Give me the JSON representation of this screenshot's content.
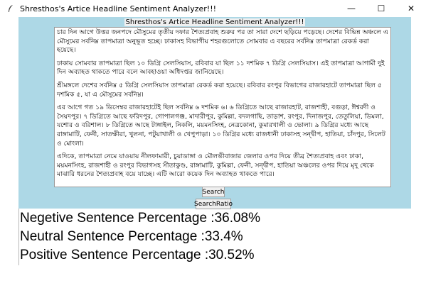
{
  "window": {
    "title": "Shresthos's Artice Headline Sentiment Analyzer!!!",
    "icon": "feather-icon",
    "minimize_glyph": "—",
    "maximize_glyph": "☐",
    "close_glyph": "✕"
  },
  "app": {
    "heading": "Shresthos's Artice Headline Sentiment Analyzer!!!",
    "background": "#add8e6",
    "article_paragraphs": [
      "চার দিন আগে উত্তর জনপদে মৌসুমের তৃতীয় দফার শৈত্যপ্রবাহ শুরুর পর তা সারা দেশে ছড়িয়ে পড়েছে। দেশের বিভিন্ন অঞ্চলে এ মৌসুমের সর্বনিম্ন তাপমাত্রা অনুভূত হচ্ছে। ঢাকাসহ বিভাগীয় শহরগুলোতে সোমবার এ বছরের সর্বনিম্ন তাপমাত্রা রেকর্ড করা হয়েছে।",
      "ঢাকায় সোমবার তাপমাত্রা ছিল ১০ ডিগ্রি সেলসিয়াস, রবিবার যা ছিল ১১ দশমিক ৭ ডিগ্রি সেলসিয়াস। এই তাপমাত্রা আগামী দুই দিন অব্যাহত থাকতে পারে বলে আবহাওয়া অধিদপ্তর জানিয়েছে।",
      "শ্রীমঙ্গলে দেশের সর্বনিম্ন ৫ ডিগ্রি সেলসিয়াস তাপমাত্রা রেকর্ড করা হয়েছে। রবিবার রংপুর বিভাগের রাজারহাটে তাপমাত্রা ছিল ৫ দশমিক ৫, যা এ মৌসুমের সর্বনিম্ন।",
      "এর আগে গত ১৯ ডিসেম্বর রাজারহাটেই ছিল সর্বনিম্ন ৬ দশমিক ৬। ৬ ডিগ্রিতে আছে রাজারহাট, রাজশাহী, বগুড়া, ঈশ্বরদী ও সৈয়দপুর। ৭ ডিগ্রিতে আছে ফরিদপুর, গোপালগঞ্জ, মাদারীপুর, কুমিল্লা, বদলগাছি, তাড়াশ, রংপুর, দিনাজপুর, তেতুলিয়া, ডিমলা, যশোর ও বরিশাল। ৮ ডিগ্রিতে আছে টাঙ্গাইল, নিকলি, ময়মনসিংহ, নেত্রকোনা, কুমারখালী ও ভোলা। ৯ ডিগ্রির মধ্যে আছে রাঙ্গামাটি, ফেনী, সাতক্ষীরা, খুলনা, পটুয়াখালী ও খেপুপাড়া। ১০ ডিগ্রির মধ্যে রাজধানী ঢাকাসহ সন্দ্বীপ, হাতিয়া, চাঁদপুর, সিলেট ও মোংলা।",
      "এদিকে, তাপমাত্রা নেমে যাওয়ায় নীলফামারী, চুয়াডাঙ্গা ও মৌলভীবাজার জেলার ওপর দিয়ে তীব্র শৈত্যপ্রবাহ এবং ঢাকা, ময়মনসিংহ, রাজশাহী ও রংপুর বিভাগসহ সীতাকুণ্ড, রাঙ্গামাটি, কুমিল্লা, ফেনী, সন্দ্বীপ, হাতিয়া অঞ্চলের ওপর দিয়ে মৃদু থেকে মাঝারি ধরনের শৈত্যপ্রবাহ বয়ে যাচ্ছে। এটি আরো কয়েক দিন অব্যাহত থাকতে পারে।"
    ],
    "search_label": "Search",
    "search_ratio_label": "SearchRatio"
  },
  "results": {
    "negative": "Negetive Sentence Percentage :36.08%",
    "neutral": "Neutral Sentence Percentage :33.4%",
    "positive": "Positive Sentence Percentage :30.52%"
  }
}
